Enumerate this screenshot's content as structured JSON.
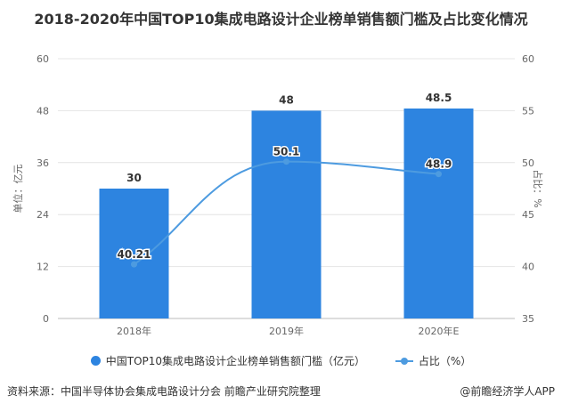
{
  "chart_data": {
    "type": "bar+line",
    "title": "2018-2020年中国TOP10集成电路设计企业榜单销售额门槛及占比变化情况",
    "categories": [
      "2018年",
      "2019年",
      "2020年E"
    ],
    "series": [
      {
        "name": "中国TOP10集成电路设计企业榜单销售额门槛（亿元）",
        "type": "bar",
        "axis": "left",
        "values": [
          30,
          48,
          48.5
        ],
        "labels": [
          "30",
          "48",
          "48.5"
        ],
        "color": "#2d84e0"
      },
      {
        "name": "占比（%）",
        "type": "line",
        "axis": "right",
        "values": [
          40.21,
          50.1,
          48.9
        ],
        "labels": [
          "40.21",
          "50.1",
          "48.9"
        ],
        "color": "#4d9be0"
      }
    ],
    "ylabel": "单位：亿元",
    "y2label": "占比：%",
    "ylim": [
      0,
      60
    ],
    "yticks": [
      "0",
      "12",
      "24",
      "36",
      "48",
      "60"
    ],
    "y2lim": [
      35,
      60
    ],
    "y2ticks": [
      "35",
      "40",
      "45",
      "50",
      "55",
      "60"
    ],
    "grid": true,
    "legend": "bottom"
  },
  "footer": {
    "source": "资料来源：中国半导体协会集成电路设计分会 前瞻产业研究院整理",
    "credit": "@前瞻经济学人APP"
  }
}
